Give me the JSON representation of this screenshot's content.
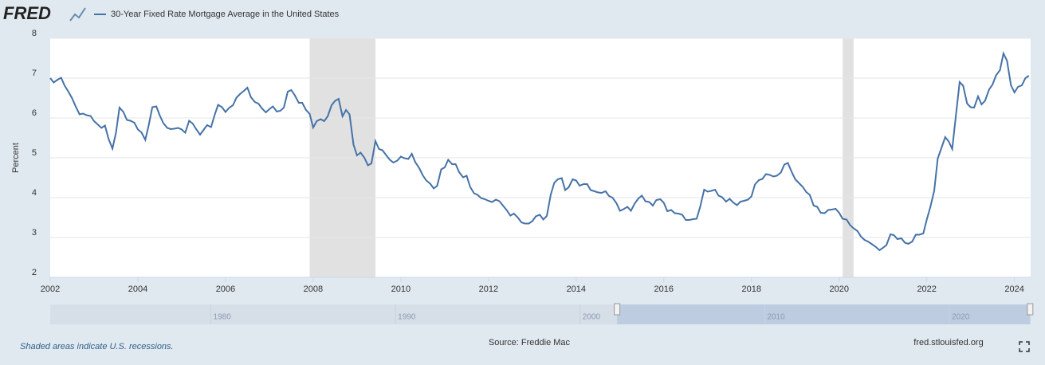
{
  "logo": "FRED",
  "chart_data": {
    "type": "line",
    "y_label": "Percent",
    "x": [
      2002.0,
      2002.08,
      2002.17,
      2002.25,
      2002.33,
      2002.42,
      2002.5,
      2002.58,
      2002.67,
      2002.75,
      2002.83,
      2002.92,
      2003.0,
      2003.08,
      2003.17,
      2003.25,
      2003.33,
      2003.42,
      2003.5,
      2003.58,
      2003.67,
      2003.75,
      2003.83,
      2003.92,
      2004.0,
      2004.08,
      2004.17,
      2004.25,
      2004.33,
      2004.42,
      2004.5,
      2004.58,
      2004.67,
      2004.75,
      2004.83,
      2004.92,
      2005.0,
      2005.08,
      2005.17,
      2005.25,
      2005.33,
      2005.42,
      2005.5,
      2005.58,
      2005.67,
      2005.75,
      2005.83,
      2005.92,
      2006.0,
      2006.08,
      2006.17,
      2006.25,
      2006.33,
      2006.42,
      2006.5,
      2006.58,
      2006.67,
      2006.75,
      2006.83,
      2006.92,
      2007.0,
      2007.08,
      2007.17,
      2007.25,
      2007.33,
      2007.42,
      2007.5,
      2007.58,
      2007.67,
      2007.75,
      2007.83,
      2007.92,
      2008.0,
      2008.08,
      2008.17,
      2008.25,
      2008.33,
      2008.42,
      2008.5,
      2008.58,
      2008.67,
      2008.75,
      2008.83,
      2008.92,
      2009.0,
      2009.08,
      2009.17,
      2009.25,
      2009.33,
      2009.42,
      2009.5,
      2009.58,
      2009.67,
      2009.75,
      2009.83,
      2009.92,
      2010.0,
      2010.08,
      2010.17,
      2010.25,
      2010.33,
      2010.42,
      2010.5,
      2010.58,
      2010.67,
      2010.75,
      2010.83,
      2010.92,
      2011.0,
      2011.08,
      2011.17,
      2011.25,
      2011.33,
      2011.42,
      2011.5,
      2011.58,
      2011.67,
      2011.75,
      2011.83,
      2011.92,
      2012.0,
      2012.08,
      2012.17,
      2012.25,
      2012.33,
      2012.42,
      2012.5,
      2012.58,
      2012.67,
      2012.75,
      2012.83,
      2012.92,
      2013.0,
      2013.08,
      2013.17,
      2013.25,
      2013.33,
      2013.42,
      2013.5,
      2013.58,
      2013.67,
      2013.75,
      2013.83,
      2013.92,
      2014.0,
      2014.08,
      2014.17,
      2014.25,
      2014.33,
      2014.42,
      2014.5,
      2014.58,
      2014.67,
      2014.75,
      2014.83,
      2014.92,
      2015.0,
      2015.08,
      2015.17,
      2015.25,
      2015.33,
      2015.42,
      2015.5,
      2015.58,
      2015.67,
      2015.75,
      2015.83,
      2015.92,
      2016.0,
      2016.08,
      2016.17,
      2016.25,
      2016.33,
      2016.42,
      2016.5,
      2016.58,
      2016.67,
      2016.75,
      2016.83,
      2016.92,
      2017.0,
      2017.08,
      2017.17,
      2017.25,
      2017.33,
      2017.42,
      2017.5,
      2017.58,
      2017.67,
      2017.75,
      2017.83,
      2017.92,
      2018.0,
      2018.08,
      2018.17,
      2018.25,
      2018.33,
      2018.42,
      2018.5,
      2018.58,
      2018.67,
      2018.75,
      2018.83,
      2018.92,
      2019.0,
      2019.08,
      2019.17,
      2019.25,
      2019.33,
      2019.42,
      2019.5,
      2019.58,
      2019.67,
      2019.75,
      2019.83,
      2019.92,
      2020.0,
      2020.08,
      2020.17,
      2020.25,
      2020.33,
      2020.42,
      2020.5,
      2020.58,
      2020.67,
      2020.75,
      2020.83,
      2020.92,
      2021.0,
      2021.08,
      2021.17,
      2021.25,
      2021.33,
      2021.42,
      2021.5,
      2021.58,
      2021.67,
      2021.75,
      2021.83,
      2021.92,
      2022.0,
      2022.08,
      2022.17,
      2022.25,
      2022.33,
      2022.42,
      2022.5,
      2022.58,
      2022.67,
      2022.75,
      2022.83,
      2022.92,
      2023.0,
      2023.08,
      2023.17,
      2023.25,
      2023.33,
      2023.42,
      2023.5,
      2023.58,
      2023.67,
      2023.75,
      2023.83,
      2023.92,
      2024.0,
      2024.08,
      2024.17,
      2024.25,
      2024.33
    ],
    "series": [
      {
        "name": "30-Year Fixed Rate Mortgage Average in the United States",
        "color": "#4572a7",
        "values": [
          7.0,
          6.89,
          6.96,
          7.01,
          6.81,
          6.65,
          6.49,
          6.29,
          6.09,
          6.11,
          6.07,
          6.05,
          5.92,
          5.84,
          5.75,
          5.81,
          5.48,
          5.23,
          5.63,
          6.26,
          6.15,
          5.95,
          5.93,
          5.88,
          5.71,
          5.64,
          5.45,
          5.83,
          6.27,
          6.29,
          6.06,
          5.87,
          5.75,
          5.72,
          5.73,
          5.75,
          5.71,
          5.63,
          5.93,
          5.86,
          5.72,
          5.58,
          5.7,
          5.82,
          5.77,
          6.07,
          6.33,
          6.27,
          6.15,
          6.25,
          6.32,
          6.51,
          6.6,
          6.68,
          6.76,
          6.52,
          6.4,
          6.36,
          6.24,
          6.14,
          6.22,
          6.29,
          6.16,
          6.18,
          6.26,
          6.66,
          6.7,
          6.57,
          6.38,
          6.38,
          6.21,
          6.1,
          5.76,
          5.92,
          5.97,
          5.92,
          6.04,
          6.32,
          6.43,
          6.48,
          6.04,
          6.2,
          6.09,
          5.33,
          5.06,
          5.13,
          5.0,
          4.81,
          4.86,
          5.42,
          5.22,
          5.19,
          5.06,
          4.95,
          4.88,
          4.93,
          5.03,
          4.99,
          4.97,
          5.1,
          4.89,
          4.74,
          4.56,
          4.43,
          4.35,
          4.23,
          4.3,
          4.71,
          4.76,
          4.95,
          4.84,
          4.84,
          4.64,
          4.51,
          4.55,
          4.27,
          4.11,
          4.07,
          3.99,
          3.96,
          3.92,
          3.89,
          3.95,
          3.91,
          3.8,
          3.68,
          3.55,
          3.6,
          3.5,
          3.38,
          3.35,
          3.35,
          3.41,
          3.53,
          3.57,
          3.45,
          3.54,
          4.07,
          4.37,
          4.46,
          4.49,
          4.19,
          4.26,
          4.46,
          4.43,
          4.3,
          4.34,
          4.34,
          4.19,
          4.16,
          4.13,
          4.12,
          4.16,
          4.04,
          4.0,
          3.86,
          3.67,
          3.71,
          3.77,
          3.67,
          3.84,
          3.98,
          4.05,
          3.91,
          3.89,
          3.8,
          3.94,
          3.96,
          3.87,
          3.66,
          3.69,
          3.61,
          3.6,
          3.57,
          3.44,
          3.44,
          3.46,
          3.47,
          3.77,
          4.2,
          4.15,
          4.17,
          4.2,
          4.05,
          4.01,
          3.9,
          3.97,
          3.88,
          3.81,
          3.9,
          3.92,
          3.95,
          4.03,
          4.33,
          4.44,
          4.47,
          4.59,
          4.57,
          4.53,
          4.55,
          4.63,
          4.83,
          4.87,
          4.64,
          4.46,
          4.37,
          4.27,
          4.14,
          4.07,
          3.8,
          3.77,
          3.62,
          3.61,
          3.69,
          3.7,
          3.72,
          3.62,
          3.47,
          3.45,
          3.31,
          3.23,
          3.16,
          3.02,
          2.94,
          2.89,
          2.83,
          2.77,
          2.68,
          2.74,
          2.81,
          3.08,
          3.06,
          2.96,
          2.98,
          2.87,
          2.84,
          2.9,
          3.07,
          3.07,
          3.1,
          3.45,
          3.76,
          4.17,
          4.98,
          5.23,
          5.52,
          5.41,
          5.22,
          6.11,
          6.9,
          6.81,
          6.36,
          6.27,
          6.26,
          6.54,
          6.34,
          6.43,
          6.71,
          6.84,
          7.07,
          7.2,
          7.62,
          7.44,
          6.82,
          6.64,
          6.78,
          6.82,
          7.0,
          7.06
        ]
      }
    ],
    "recessions": [
      [
        2007.92,
        2009.42
      ],
      [
        2020.08,
        2020.33
      ]
    ],
    "xlim": [
      2002,
      2024.37
    ],
    "xticks": [
      2002,
      2004,
      2006,
      2008,
      2010,
      2012,
      2014,
      2016,
      2018,
      2020,
      2022,
      2024
    ],
    "ylim": [
      2,
      8
    ],
    "yticks": [
      2,
      3,
      4,
      5,
      6,
      7,
      8
    ],
    "grid": true
  },
  "navigator": {
    "xlim": [
      1971.3,
      2024.4
    ],
    "xticks": [
      1980,
      1990,
      2000,
      2010,
      2020
    ]
  },
  "footer": {
    "note": "Shaded areas indicate U.S. recessions.",
    "source": "Source: Freddie Mac",
    "site": "fred.stlouisfed.org"
  }
}
